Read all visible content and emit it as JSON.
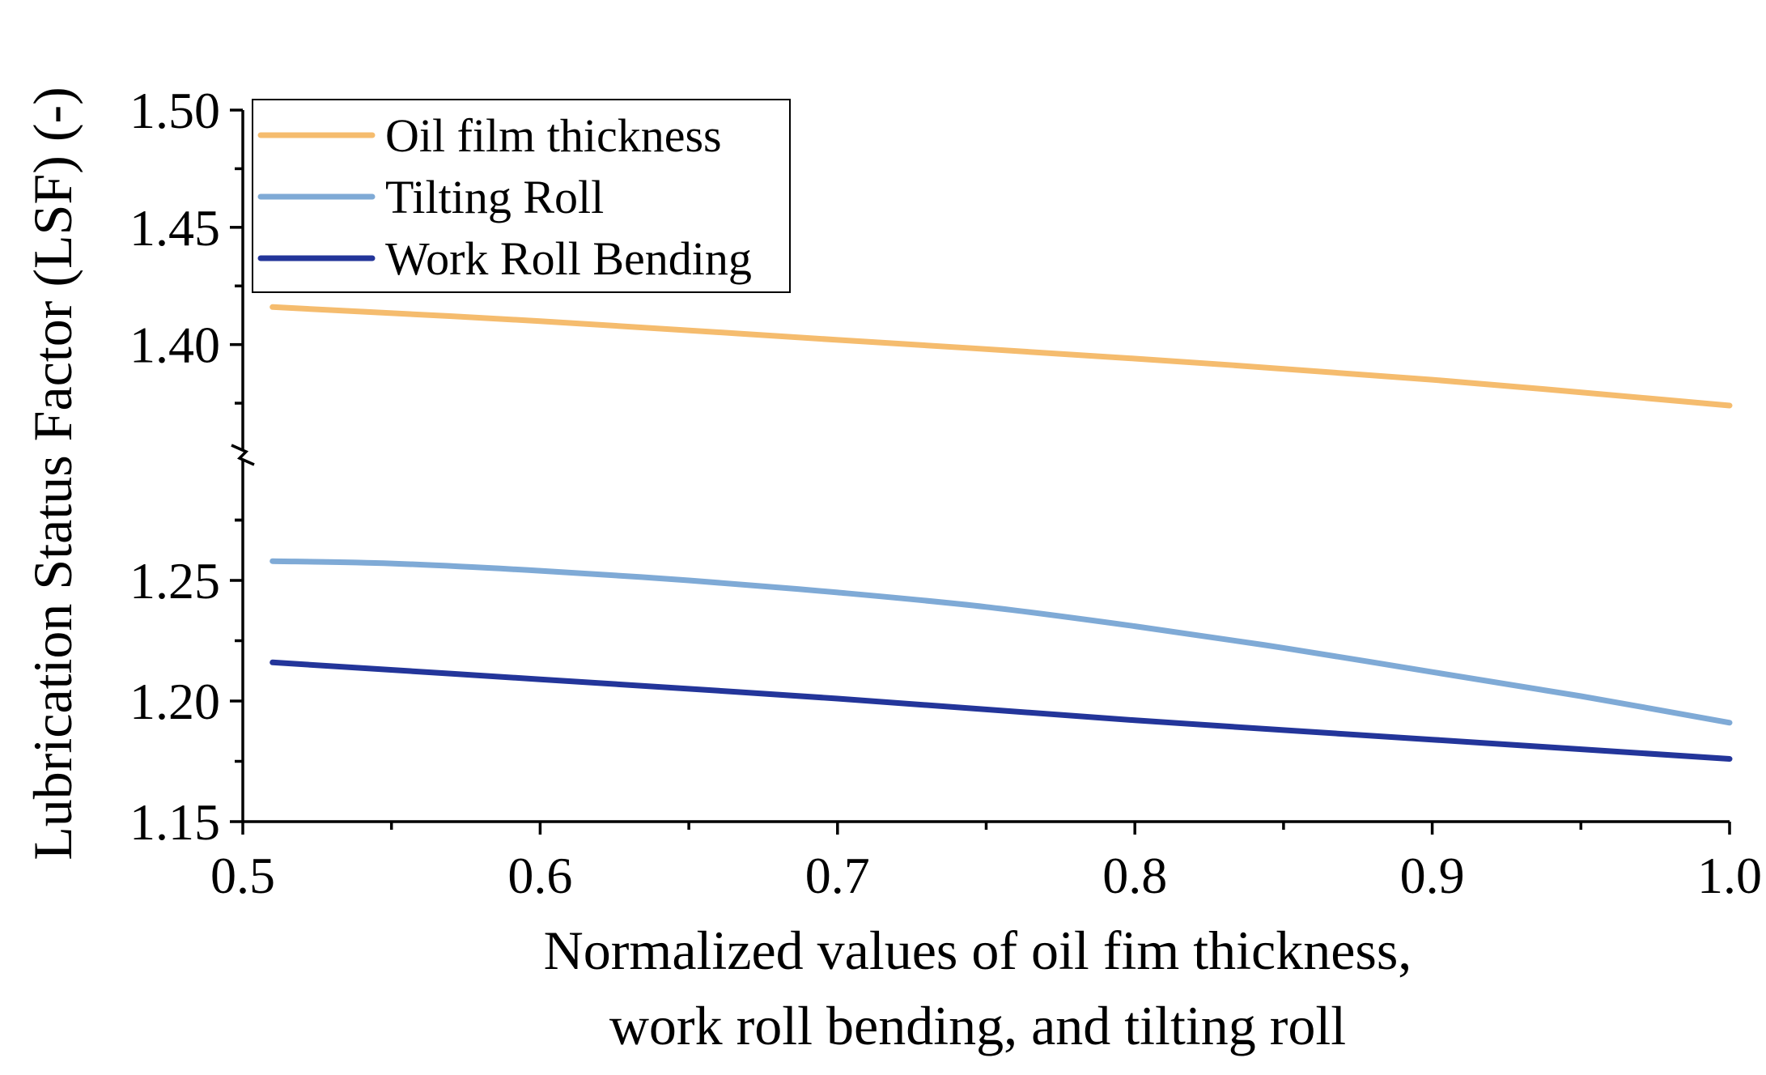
{
  "chart_data": {
    "type": "line",
    "xlabel_lines": [
      "Normalized values of oil fim thickness,",
      "work roll bending, and tilting roll"
    ],
    "ylabel": "Lubrication Status Factor (LSF) (-)",
    "xlim": [
      0.5,
      1.0
    ],
    "x_ticks": [
      {
        "value": 0.5,
        "label": "0.5"
      },
      {
        "value": 0.6,
        "label": "0.6"
      },
      {
        "value": 0.7,
        "label": "0.7"
      },
      {
        "value": 0.8,
        "label": "0.8"
      },
      {
        "value": 0.9,
        "label": "0.9"
      },
      {
        "value": 1.0,
        "label": "1.0"
      }
    ],
    "y_axis_break": {
      "lower_segment": [
        1.15,
        1.3
      ],
      "upper_segment": [
        1.355,
        1.5
      ]
    },
    "y_ticks": [
      {
        "value": 1.15,
        "label": "1.15"
      },
      {
        "value": 1.2,
        "label": "1.20"
      },
      {
        "value": 1.25,
        "label": "1.25"
      },
      {
        "value": 1.4,
        "label": "1.40"
      },
      {
        "value": 1.45,
        "label": "1.45"
      },
      {
        "value": 1.5,
        "label": "1.50"
      }
    ],
    "legend": {
      "placement": "top-left"
    },
    "series": [
      {
        "name": "Oil film thickness",
        "color": "#f5bc6e",
        "x": [
          0.51,
          0.6,
          0.7,
          0.8,
          0.9,
          1.0
        ],
        "y": [
          1.416,
          1.41,
          1.402,
          1.394,
          1.385,
          1.374
        ]
      },
      {
        "name": "Tilting Roll",
        "color": "#7faad6",
        "x": [
          0.51,
          0.55,
          0.6,
          0.65,
          0.7,
          0.75,
          0.8,
          0.85,
          0.9,
          0.95,
          1.0
        ],
        "y": [
          1.258,
          1.257,
          1.254,
          1.25,
          1.245,
          1.239,
          1.231,
          1.222,
          1.212,
          1.202,
          1.191
        ]
      },
      {
        "name": "Work Roll Bending",
        "color": "#23359a",
        "x": [
          0.51,
          0.6,
          0.7,
          0.8,
          0.9,
          1.0
        ],
        "y": [
          1.216,
          1.209,
          1.201,
          1.192,
          1.184,
          1.176
        ]
      }
    ]
  }
}
